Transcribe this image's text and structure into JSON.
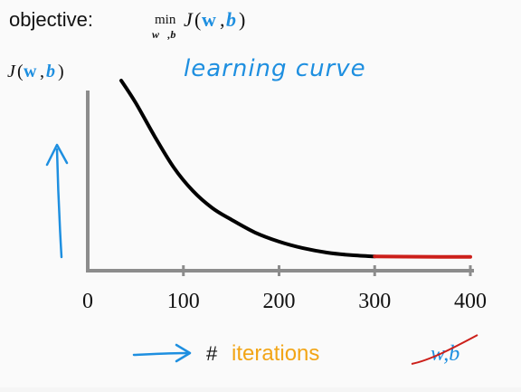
{
  "objective": {
    "label": "objective:",
    "min_word": "min",
    "min_subscript": "w⃗,b",
    "func_J": "J",
    "func_open": "(",
    "func_w": "w⃗",
    "func_comma": ",",
    "func_b": "b",
    "func_close": ")"
  },
  "chart_data": {
    "type": "line",
    "title": "learning curve",
    "ylabel": {
      "J": "J",
      "open": "(",
      "w": "w⃗",
      "comma": ",",
      "b": "b",
      "close": ")"
    },
    "xlabel": {
      "hash": "#",
      "word": "iterations"
    },
    "crossed_out_label": "w,b",
    "x_ticks": [
      "0",
      "100",
      "200",
      "300",
      "400"
    ],
    "xlim": [
      0,
      400
    ],
    "ylim": [
      0,
      1
    ],
    "series": [
      {
        "segment": "descent",
        "x": [
          35,
          50,
          70,
          90,
          110,
          130,
          150,
          175,
          200,
          225,
          250,
          275,
          300
        ],
        "y": [
          0.69,
          0.605,
          0.475,
          0.355,
          0.265,
          0.2,
          0.155,
          0.105,
          0.07,
          0.045,
          0.028,
          0.018,
          0.013
        ],
        "color": "#000000"
      },
      {
        "segment": "plateau",
        "x": [
          300,
          350,
          400
        ],
        "y": [
          0.013,
          0.012,
          0.011
        ],
        "color": "#cc1f1a"
      }
    ],
    "grid": false
  },
  "colors": {
    "blue": "#1e8fe0",
    "orange": "#f2a516",
    "red": "#cc1f1a",
    "axis": "#8c8c8c",
    "text": "#111111"
  },
  "annotations": {
    "up_arrow": "arrow-up-icon",
    "right_arrow": "arrow-right-icon"
  }
}
